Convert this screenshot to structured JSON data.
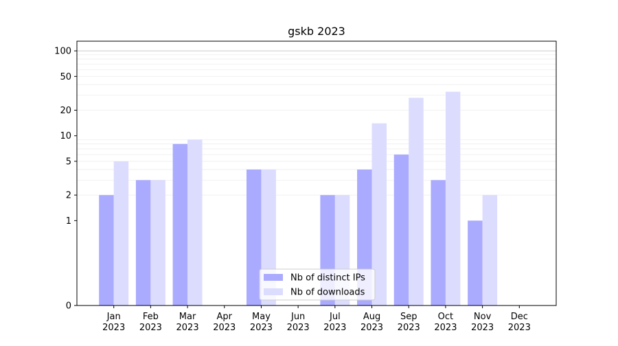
{
  "chart_data": {
    "type": "bar",
    "title": "gskb 2023",
    "xlabel": "",
    "ylabel": "",
    "y_scale": "symlog",
    "ylim": [
      0,
      130
    ],
    "y_ticks": [
      0,
      1,
      2,
      5,
      10,
      20,
      50,
      100
    ],
    "categories": [
      {
        "month": "Jan",
        "year": "2023"
      },
      {
        "month": "Feb",
        "year": "2023"
      },
      {
        "month": "Mar",
        "year": "2023"
      },
      {
        "month": "Apr",
        "year": "2023"
      },
      {
        "month": "May",
        "year": "2023"
      },
      {
        "month": "Jun",
        "year": "2023"
      },
      {
        "month": "Jul",
        "year": "2023"
      },
      {
        "month": "Aug",
        "year": "2023"
      },
      {
        "month": "Sep",
        "year": "2023"
      },
      {
        "month": "Oct",
        "year": "2023"
      },
      {
        "month": "Nov",
        "year": "2023"
      },
      {
        "month": "Dec",
        "year": "2023"
      }
    ],
    "series": [
      {
        "name": "Nb of distinct IPs",
        "color": "#aaaaff",
        "values": [
          2,
          3,
          8,
          0,
          4,
          0,
          2,
          4,
          6,
          3,
          1,
          0
        ]
      },
      {
        "name": "Nb of downloads",
        "color": "#dcdcff",
        "values": [
          5,
          3,
          9,
          0,
          4,
          0,
          2,
          14,
          28,
          33,
          2,
          0
        ]
      }
    ],
    "grid": true,
    "legend_position": "bottom-center"
  }
}
